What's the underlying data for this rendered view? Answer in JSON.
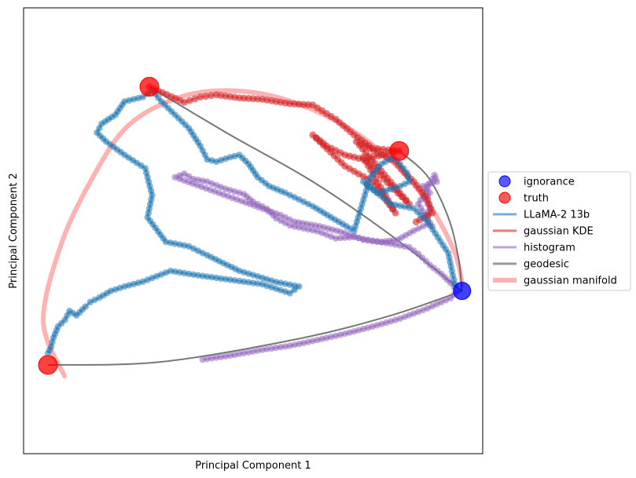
{
  "chart_data": {
    "type": "scatter",
    "title": "",
    "xlabel": "Principal Component 1",
    "ylabel": "Principal Component 2",
    "xlim": [
      0,
      100
    ],
    "ylim": [
      0,
      100
    ],
    "ticks_visible": false,
    "grid": false,
    "legend_position": "outside-right",
    "legend": [
      {
        "label": "ignorance",
        "kind": "marker",
        "color": "#0000ff"
      },
      {
        "label": "truth",
        "kind": "marker",
        "color": "#ff0000"
      },
      {
        "label": "LLaMA-2 13b",
        "kind": "line",
        "color": "#1f77b4"
      },
      {
        "label": "gaussian KDE",
        "kind": "line",
        "color": "#d62728"
      },
      {
        "label": "histogram",
        "kind": "line",
        "color": "#9467bd"
      },
      {
        "label": "geodesic",
        "kind": "line",
        "color": "#555555"
      },
      {
        "label": "gaussian manifold",
        "kind": "line",
        "color": "#ff6666"
      }
    ],
    "series": {
      "ignorance": {
        "color": "#0000ff",
        "points": [
          [
            95.5,
            36.5
          ]
        ]
      },
      "truth": {
        "color": "#ff0000",
        "points": [
          [
            5.3,
            19.9
          ],
          [
            27.4,
            82.3
          ],
          [
            81.8,
            67.9
          ]
        ]
      },
      "gaussian_manifold": {
        "color": "#ff6666",
        "points": [
          [
            8.9,
            17.4
          ],
          [
            4.3,
            29.8
          ],
          [
            8.4,
            47.6
          ],
          [
            15.4,
            62.6
          ],
          [
            22.2,
            73.0
          ],
          [
            31.0,
            78.8
          ],
          [
            40.6,
            81.3
          ],
          [
            52.0,
            80.7
          ],
          [
            62.9,
            77.2
          ],
          [
            72.8,
            71.7
          ],
          [
            81.3,
            64.5
          ],
          [
            88.5,
            55.6
          ],
          [
            93.8,
            45.4
          ],
          [
            95.6,
            37.9
          ]
        ]
      },
      "geodesic": {
        "color": "#555555",
        "curves": [
          [
            [
              5.3,
              19.9
            ],
            [
              30.0,
              20.6
            ],
            [
              60.0,
              25.8
            ],
            [
              80.0,
              31.0
            ],
            [
              95.5,
              36.5
            ]
          ],
          [
            [
              27.4,
              82.3
            ],
            [
              45.0,
              71.5
            ],
            [
              63.0,
              61.0
            ],
            [
              80.0,
              49.0
            ],
            [
              95.5,
              36.5
            ]
          ],
          [
            [
              81.8,
              67.9
            ],
            [
              88.0,
              62.2
            ],
            [
              92.5,
              53.0
            ],
            [
              94.7,
              44.0
            ],
            [
              95.5,
              36.5
            ]
          ]
        ]
      },
      "histogram": {
        "color": "#9467bd",
        "points": [
          [
            39.0,
            21.1
          ],
          [
            45.0,
            22.0
          ],
          [
            52.0,
            23.3
          ],
          [
            58.0,
            24.2
          ],
          [
            64.0,
            25.5
          ],
          [
            70.0,
            26.9
          ],
          [
            76.0,
            28.5
          ],
          [
            82.0,
            30.3
          ],
          [
            88.0,
            32.6
          ],
          [
            93.0,
            34.9
          ],
          [
            94.5,
            36.4
          ],
          [
            93.0,
            38.3
          ],
          [
            91.0,
            40.3
          ],
          [
            88.5,
            42.3
          ],
          [
            86.0,
            44.8
          ],
          [
            84.0,
            46.3
          ],
          [
            80.0,
            47.1
          ],
          [
            76.0,
            47.7
          ],
          [
            72.0,
            48.6
          ],
          [
            68.0,
            48.3
          ],
          [
            64.0,
            49.9
          ],
          [
            62.0,
            50.3
          ],
          [
            58.0,
            51.2
          ],
          [
            55.0,
            52.8
          ],
          [
            53.0,
            54.9
          ],
          [
            50.0,
            56.5
          ],
          [
            48.0,
            58.2
          ],
          [
            44.0,
            59.4
          ],
          [
            40.0,
            61.0
          ],
          [
            37.0,
            61.6
          ],
          [
            35.0,
            62.8
          ],
          [
            33.0,
            62.0
          ],
          [
            56.0,
            53.5
          ],
          [
            59.0,
            52.0
          ],
          [
            64.5,
            51.0
          ],
          [
            70.0,
            49.5
          ],
          [
            74.0,
            48.0
          ],
          [
            78.0,
            47.5
          ],
          [
            81.5,
            48.0
          ],
          [
            85.0,
            50.0
          ],
          [
            88.0,
            51.5
          ],
          [
            88.0,
            53.5
          ],
          [
            88.5,
            55.0
          ],
          [
            87.5,
            57.0
          ],
          [
            88.5,
            58.5
          ],
          [
            87.0,
            60.0
          ],
          [
            90.0,
            61.0
          ],
          [
            89.5,
            62.5
          ],
          [
            86.0,
            56.0
          ],
          [
            89.0,
            51.0
          ]
        ]
      },
      "gaussian_kde": {
        "color": "#d62728",
        "points": [
          [
            27.4,
            82.3
          ],
          [
            35.0,
            78.8
          ],
          [
            38.5,
            80.0
          ],
          [
            42.0,
            80.5
          ],
          [
            47.0,
            79.8
          ],
          [
            52.0,
            79.5
          ],
          [
            58.0,
            78.5
          ],
          [
            63.0,
            78.2
          ],
          [
            68.0,
            75.0
          ],
          [
            72.0,
            71.5
          ],
          [
            76.0,
            68.5
          ],
          [
            81.8,
            67.9
          ],
          [
            74.0,
            66.0
          ],
          [
            70.0,
            67.0
          ],
          [
            66.0,
            69.0
          ],
          [
            63.0,
            71.5
          ],
          [
            70.0,
            64.5
          ],
          [
            76.0,
            61.0
          ],
          [
            81.0,
            54.0
          ],
          [
            74.0,
            66.5
          ],
          [
            80.0,
            60.0
          ],
          [
            84.0,
            56.0
          ],
          [
            72.5,
            70.0
          ],
          [
            74.5,
            69.0
          ],
          [
            78.0,
            67.0
          ],
          [
            81.0,
            65.5
          ],
          [
            83.0,
            63.0
          ],
          [
            85.0,
            61.0
          ],
          [
            88.0,
            57.0
          ],
          [
            89.0,
            54.0
          ],
          [
            85.5,
            52.0
          ]
        ]
      },
      "llama": {
        "color": "#1f77b4",
        "points": [
          [
            5.3,
            22.5
          ],
          [
            6.0,
            24.0
          ],
          [
            6.5,
            26.0
          ],
          [
            7.5,
            28.5
          ],
          [
            9.0,
            30.0
          ],
          [
            10.0,
            32.0
          ],
          [
            11.5,
            31.0
          ],
          [
            13.5,
            33.0
          ],
          [
            14.5,
            34.0
          ],
          [
            16.5,
            35.0
          ],
          [
            19.0,
            36.5
          ],
          [
            22.0,
            37.5
          ],
          [
            26.0,
            38.6
          ],
          [
            32.0,
            41.0
          ],
          [
            38.0,
            40.0
          ],
          [
            45.0,
            39.0
          ],
          [
            52.0,
            38.0
          ],
          [
            58.0,
            36.0
          ],
          [
            60.0,
            37.5
          ],
          [
            55.0,
            38.5
          ],
          [
            47.0,
            41.0
          ],
          [
            40.0,
            44.5
          ],
          [
            36.0,
            46.5
          ],
          [
            31.0,
            47.5
          ],
          [
            27.0,
            53.0
          ],
          [
            28.0,
            58.0
          ],
          [
            26.5,
            64.0
          ],
          [
            22.0,
            67.0
          ],
          [
            18.0,
            70.0
          ],
          [
            16.0,
            72.0
          ],
          [
            17.0,
            74.0
          ],
          [
            20.0,
            76.0
          ],
          [
            22.0,
            79.0
          ],
          [
            26.0,
            80.0
          ],
          [
            28.0,
            81.5
          ],
          [
            30.0,
            79.0
          ],
          [
            33.0,
            76.0
          ],
          [
            36.0,
            73.0
          ],
          [
            38.5,
            69.0
          ],
          [
            40.0,
            66.0
          ],
          [
            42.0,
            65.5
          ],
          [
            45.0,
            66.5
          ],
          [
            47.0,
            67.0
          ],
          [
            49.0,
            65.0
          ],
          [
            51.0,
            62.0
          ],
          [
            53.5,
            60.0
          ],
          [
            57.0,
            58.5
          ],
          [
            60.0,
            57.0
          ],
          [
            63.0,
            55.5
          ],
          [
            67.0,
            53.0
          ],
          [
            72.0,
            50.0
          ],
          [
            75.5,
            62.0
          ],
          [
            78.0,
            65.0
          ],
          [
            80.5,
            66.5
          ],
          [
            82.0,
            65.0
          ],
          [
            83.5,
            63.0
          ],
          [
            84.0,
            61.0
          ],
          [
            82.0,
            60.0
          ],
          [
            79.0,
            59.0
          ],
          [
            77.0,
            58.5
          ],
          [
            74.0,
            61.0
          ],
          [
            80.0,
            56.0
          ],
          [
            85.0,
            55.0
          ],
          [
            88.0,
            52.0
          ],
          [
            92.5,
            45.0
          ],
          [
            93.5,
            40.0
          ],
          [
            94.0,
            38.0
          ]
        ]
      }
    }
  }
}
